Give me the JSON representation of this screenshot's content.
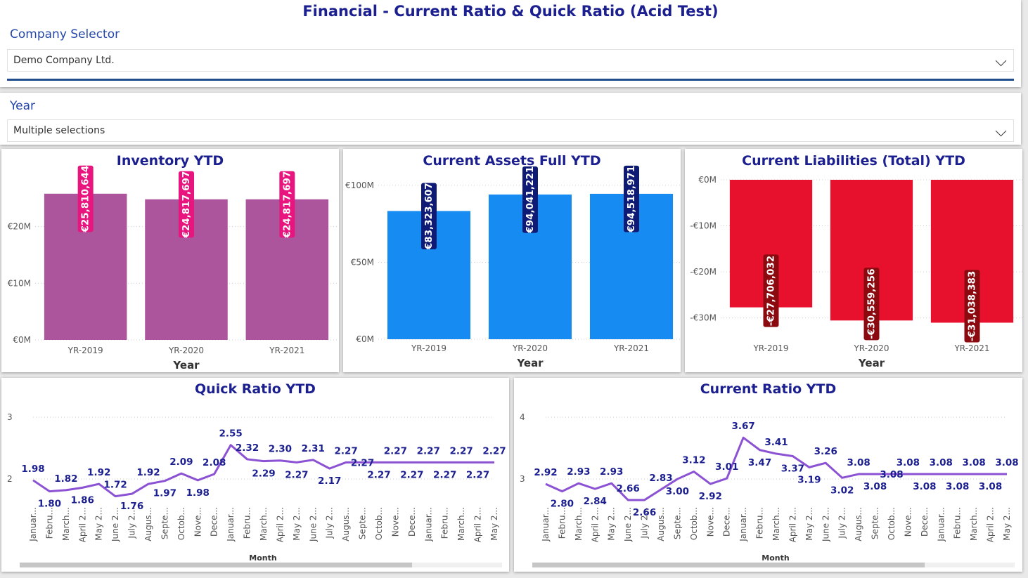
{
  "header": {
    "title": "Financial - Current Ratio & Quick Ratio (Acid Test)"
  },
  "company_selector": {
    "label": "Company Selector",
    "value": "Demo Company Ltd."
  },
  "year_selector": {
    "label": "Year",
    "value": "Multiple selections"
  },
  "colors": {
    "title": "#1b1f8f",
    "inventory_bar": "#ad559c",
    "inventory_label": "#e8157e",
    "assets_bar": "#168cf2",
    "assets_label": "#0e1a73",
    "liabilities_bar": "#e8112d",
    "liabilities_label": "#8b0a10",
    "line": "#8c52d4",
    "separator": "#1e4e8c"
  },
  "chart_data": [
    {
      "id": "inventory",
      "type": "bar",
      "title": "Inventory YTD",
      "xlabel": "Year",
      "categories": [
        "YR-2019",
        "YR-2020",
        "YR-2021"
      ],
      "values": [
        25810644,
        24817697,
        24817697
      ],
      "data_labels": [
        "€25,810,644",
        "€24,817,697",
        "€24,817,697"
      ],
      "yticks": [
        0,
        10000000,
        20000000
      ],
      "ytick_labels": [
        "€0M",
        "€10M",
        "€20M"
      ],
      "ylim": [
        0,
        30000000
      ],
      "grid": true
    },
    {
      "id": "assets",
      "type": "bar",
      "title": "Current Assets Full YTD",
      "xlabel": "Year",
      "categories": [
        "YR-2019",
        "YR-2020",
        "YR-2021"
      ],
      "values": [
        83323607,
        94041221,
        94518971
      ],
      "data_labels": [
        "€83,323,607",
        "€94,041,221",
        "€94,518,971"
      ],
      "yticks": [
        0,
        50000000,
        100000000
      ],
      "ytick_labels": [
        "€0M",
        "€50M",
        "€100M"
      ],
      "ylim": [
        0,
        110000000
      ],
      "grid": true
    },
    {
      "id": "liabilities",
      "type": "bar",
      "title": "Current Liabilities (Total) YTD",
      "xlabel": "Year",
      "categories": [
        "YR-2019",
        "YR-2020",
        "YR-2021"
      ],
      "values": [
        -27706032,
        -30559256,
        -31038383
      ],
      "data_labels": [
        "-€27,706,032",
        "-€30,559,256",
        "-€31,038,383"
      ],
      "yticks": [
        0,
        -10000000,
        -20000000,
        -30000000
      ],
      "ytick_labels": [
        "€0M",
        "-€10M",
        "-€20M",
        "-€30M"
      ],
      "ylim": [
        -36000000,
        0
      ],
      "grid": true
    },
    {
      "id": "quick",
      "type": "line",
      "title": "Quick Ratio YTD",
      "xlabel": "Month",
      "x": [
        "Januar...",
        "Febru...",
        "March...",
        "April 2...",
        "May 2...",
        "June 2...",
        "July 2...",
        "Augus...",
        "Septe...",
        "Octob...",
        "Nove...",
        "Dece...",
        "Januar...",
        "Febru...",
        "March...",
        "April 2...",
        "May 2...",
        "June 2...",
        "July 2...",
        "Augus...",
        "Septe...",
        "Octob...",
        "Nove...",
        "Dece...",
        "Januar...",
        "Febru...",
        "March...",
        "April 2...",
        "May 2..."
      ],
      "values": [
        1.98,
        1.8,
        1.82,
        1.86,
        1.92,
        1.72,
        1.76,
        1.92,
        1.97,
        2.09,
        1.98,
        2.08,
        2.55,
        2.32,
        2.29,
        2.3,
        2.27,
        2.31,
        2.17,
        2.27,
        2.27,
        2.27,
        2.27,
        2.27,
        2.27,
        2.27,
        2.27,
        2.27,
        2.27
      ],
      "label_pos": [
        "a",
        "b",
        "a",
        "b",
        "a",
        "a",
        "b",
        "a",
        "b",
        "a",
        "b",
        "a",
        "a",
        "a",
        "b",
        "a",
        "b",
        "a",
        "b",
        "a",
        "n",
        "b",
        "a",
        "b",
        "a",
        "b",
        "a",
        "b",
        "a"
      ],
      "yticks": [
        2,
        3
      ],
      "ytick_labels": [
        "2",
        "3"
      ],
      "ylim": [
        1.5,
        3.15
      ],
      "grid": true
    },
    {
      "id": "current",
      "type": "line",
      "title": "Current Ratio YTD",
      "xlabel": "Month",
      "x": [
        "Januar...",
        "Febru...",
        "March...",
        "April 2...",
        "May 2...",
        "June 2...",
        "July 2...",
        "Augus...",
        "Septe...",
        "Octob...",
        "Nove...",
        "Dece...",
        "Januar...",
        "Febru...",
        "March...",
        "April 2...",
        "May 2...",
        "June 2...",
        "July 2...",
        "Augus...",
        "Septe...",
        "Octob...",
        "Nove...",
        "Dece...",
        "Januar...",
        "Febru...",
        "March...",
        "April 2...",
        "May 2..."
      ],
      "values": [
        2.92,
        2.8,
        2.93,
        2.84,
        2.93,
        2.66,
        2.66,
        2.83,
        3.0,
        3.12,
        2.92,
        3.01,
        3.67,
        3.47,
        3.41,
        3.37,
        3.19,
        3.26,
        3.02,
        3.08,
        3.08,
        3.08,
        3.08,
        3.08,
        3.08,
        3.08,
        3.08,
        3.08,
        3.08
      ],
      "label_pos": [
        "a",
        "b",
        "a",
        "b",
        "a",
        "a",
        "b",
        "a",
        "b",
        "a",
        "b",
        "a",
        "a",
        "b",
        "a",
        "b",
        "b",
        "a",
        "b",
        "a",
        "b",
        "n",
        "a",
        "b",
        "a",
        "b",
        "a",
        "b",
        "a"
      ],
      "yticks": [
        3,
        4
      ],
      "ytick_labels": [
        "3",
        "4"
      ],
      "ylim": [
        2.5,
        4.15
      ],
      "grid": true
    }
  ]
}
